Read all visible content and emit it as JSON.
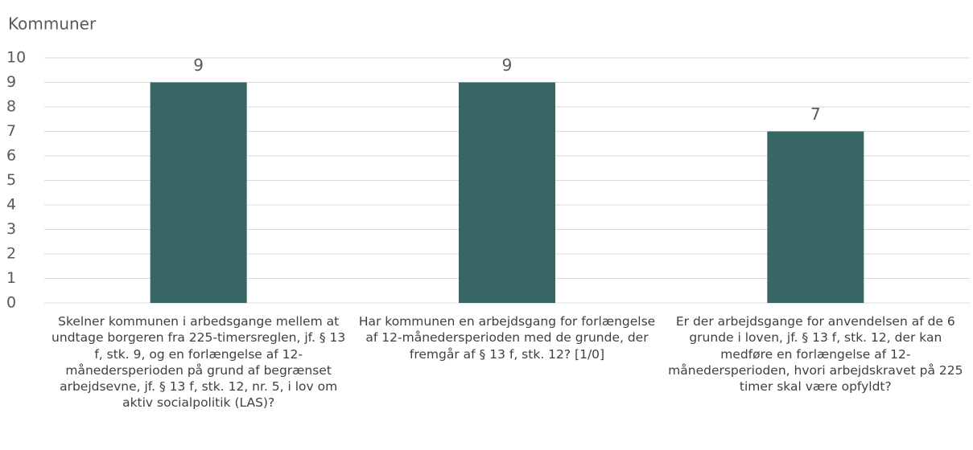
{
  "chart_data": {
    "type": "bar",
    "y_label": "Kommuner",
    "categories": [
      "Skelner kommunen i arbedsgange mellem at undtage borgeren fra 225-timersreglen, jf. § 13 f, stk. 9, og en forlængelse af 12- månedersperioden på grund af begrænset arbejdsevne, jf. § 13 f, stk. 12, nr. 5, i lov om aktiv socialpolitik (LAS)?",
      "Har kommunen en arbejdsgang for forlængelse af 12-månedersperioden med de grunde, der fremgår af § 13 f, stk. 12? [1/0]",
      "Er der arbejdsgange for anvendelsen af de 6 grunde i loven, jf. § 13 f, stk. 12, der kan medføre en forlængelse af 12-månedersperioden, hvori arbejdskravet på 225 timer skal være opfyldt?"
    ],
    "values": [
      9,
      9,
      7
    ],
    "color": "#386664",
    "ylim": [
      0,
      10
    ],
    "yticks": [
      0,
      1,
      2,
      3,
      4,
      5,
      6,
      7,
      8,
      9,
      10
    ],
    "grid": true
  }
}
